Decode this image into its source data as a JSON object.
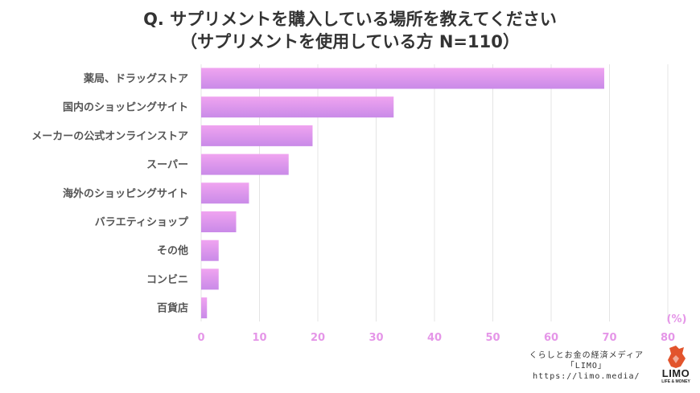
{
  "title": {
    "line1": "Q. サプリメントを購入している場所を教えてください",
    "line2": "（サプリメントを使用している方 N=110）"
  },
  "chart_data": {
    "type": "bar",
    "orientation": "horizontal",
    "categories": [
      "薬局、ドラッグストア",
      "国内のショッピングサイト",
      "メーカーの公式オンラインストア",
      "スーパー",
      "海外のショッピングサイト",
      "バラエティショップ",
      "その他",
      "コンビニ",
      "百貨店"
    ],
    "values": [
      69.1,
      33.0,
      19.1,
      15.0,
      8.2,
      6.0,
      3.0,
      3.0,
      1.0
    ],
    "xlim": [
      0,
      80
    ],
    "xticks": [
      "0",
      "10",
      "20",
      "30",
      "40",
      "50",
      "60",
      "70",
      "80"
    ],
    "unit_label": "(%)",
    "grid": true,
    "bar_color_top": "#f0a4f0",
    "bar_color_bottom": "#c98ae8"
  },
  "footer": {
    "line1": "くらしとお金の経済メディア",
    "line2": "「LIMO」",
    "line3": "https://limo.media/"
  },
  "logo": {
    "brand": "LIMO",
    "tagline": "LIFE & MONEY",
    "accent_color": "#e2542c"
  }
}
